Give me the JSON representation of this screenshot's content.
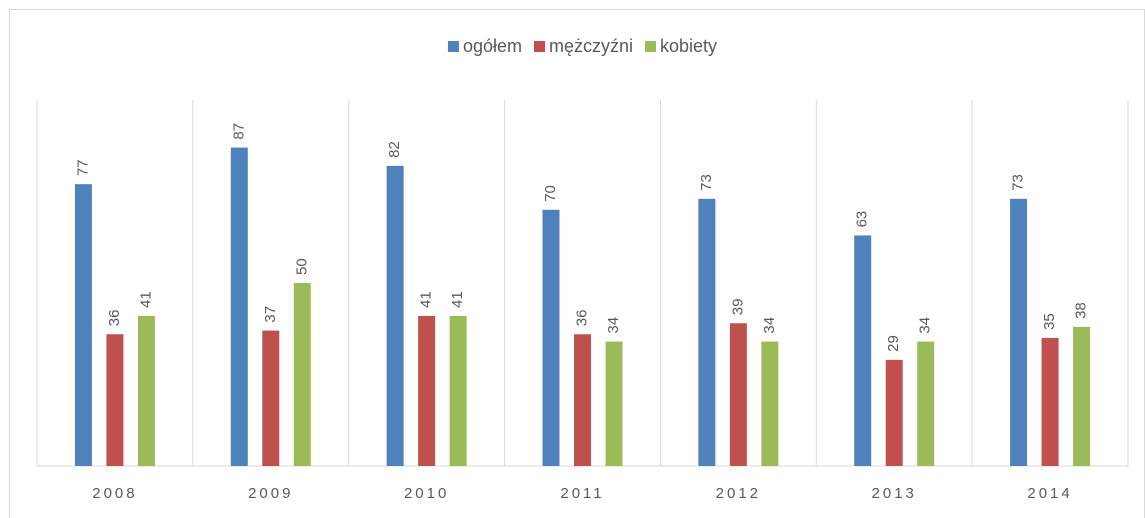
{
  "chart_data": {
    "type": "bar",
    "categories": [
      "2008",
      "2009",
      "2010",
      "2011",
      "2012",
      "2013",
      "2014"
    ],
    "series": [
      {
        "name": "ogółem",
        "color": "#4f81bd",
        "values": [
          77,
          87,
          82,
          70,
          73,
          63,
          73
        ]
      },
      {
        "name": "mężczyźni",
        "color": "#c0504d",
        "values": [
          36,
          37,
          41,
          36,
          39,
          29,
          35
        ]
      },
      {
        "name": "kobiety",
        "color": "#9bbb59",
        "values": [
          41,
          50,
          41,
          34,
          34,
          34,
          38
        ]
      }
    ],
    "ylim": [
      0,
      100
    ],
    "grid": true,
    "legend": "top"
  }
}
